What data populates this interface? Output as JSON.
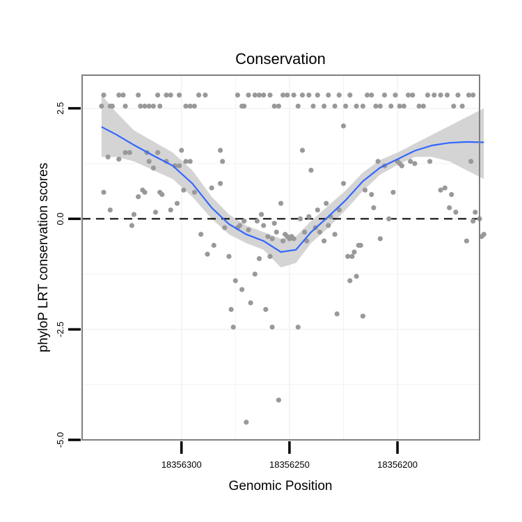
{
  "chart_data": {
    "type": "scatter",
    "title": "Conservation",
    "xlabel": "Genomic Position",
    "ylabel": "phyloP LRT conservation scores",
    "x_reversed": true,
    "xlim": [
      18356162,
      18356346
    ],
    "ylim": [
      -5.0,
      3.25
    ],
    "x_ticks": [
      18356300,
      18356250,
      18356200
    ],
    "x_tick_labels": [
      "18356300",
      "18356250",
      "18356200"
    ],
    "y_ticks": [
      2.5,
      0.0,
      -2.5,
      -5.0
    ],
    "y_tick_labels": [
      "2.5",
      "0.0",
      "-2.5",
      "-5.0"
    ],
    "grid": true,
    "reference_line": {
      "y": 0,
      "style": "dashed",
      "color": "#000000"
    },
    "colors": {
      "points": "#999999",
      "smooth_line": "#3366ff",
      "confidence_band": "#d4d4d4",
      "panel_border": "#7f7f7f",
      "grid": "#f2f2f2"
    },
    "points": [
      [
        18356337,
        2.55
      ],
      [
        18356336,
        2.8
      ],
      [
        18356333,
        2.55
      ],
      [
        18356332,
        2.55
      ],
      [
        18356329,
        2.8
      ],
      [
        18356327,
        2.8
      ],
      [
        18356326,
        2.55
      ],
      [
        18356320,
        2.8
      ],
      [
        18356319,
        2.55
      ],
      [
        18356317,
        2.55
      ],
      [
        18356315,
        2.55
      ],
      [
        18356313,
        2.55
      ],
      [
        18356311,
        2.8
      ],
      [
        18356310,
        2.55
      ],
      [
        18356307,
        2.8
      ],
      [
        18356305,
        2.8
      ],
      [
        18356301,
        2.8
      ],
      [
        18356298,
        2.55
      ],
      [
        18356296,
        2.55
      ],
      [
        18356294,
        2.55
      ],
      [
        18356292,
        2.8
      ],
      [
        18356289,
        2.8
      ],
      [
        18356274,
        2.8
      ],
      [
        18356272,
        2.55
      ],
      [
        18356271,
        2.55
      ],
      [
        18356269,
        2.8
      ],
      [
        18356266,
        2.8
      ],
      [
        18356264,
        2.8
      ],
      [
        18356262,
        2.8
      ],
      [
        18356259,
        2.8
      ],
      [
        18356257,
        2.55
      ],
      [
        18356255,
        2.55
      ],
      [
        18356253,
        2.8
      ],
      [
        18356251,
        2.8
      ],
      [
        18356248,
        2.8
      ],
      [
        18356246,
        2.55
      ],
      [
        18356244,
        2.8
      ],
      [
        18356241,
        2.8
      ],
      [
        18356239,
        2.55
      ],
      [
        18356237,
        2.8
      ],
      [
        18356234,
        2.55
      ],
      [
        18356232,
        2.8
      ],
      [
        18356229,
        2.55
      ],
      [
        18356227,
        2.8
      ],
      [
        18356224,
        2.55
      ],
      [
        18356222,
        2.8
      ],
      [
        18356219,
        2.55
      ],
      [
        18356216,
        2.55
      ],
      [
        18356214,
        2.8
      ],
      [
        18356212,
        2.8
      ],
      [
        18356210,
        2.55
      ],
      [
        18356208,
        2.55
      ],
      [
        18356206,
        2.8
      ],
      [
        18356203,
        2.55
      ],
      [
        18356201,
        2.8
      ],
      [
        18356199,
        2.55
      ],
      [
        18356197,
        2.55
      ],
      [
        18356195,
        2.8
      ],
      [
        18356193,
        2.8
      ],
      [
        18356190,
        2.55
      ],
      [
        18356188,
        2.55
      ],
      [
        18356186,
        2.8
      ],
      [
        18356183,
        2.8
      ],
      [
        18356180,
        2.8
      ],
      [
        18356177,
        2.8
      ],
      [
        18356174,
        2.55
      ],
      [
        18356172,
        2.8
      ],
      [
        18356170,
        2.55
      ],
      [
        18356167,
        2.8
      ],
      [
        18356165,
        2.8
      ],
      [
        18356336,
        0.6
      ],
      [
        18356334,
        1.4
      ],
      [
        18356333,
        0.2
      ],
      [
        18356329,
        1.35
      ],
      [
        18356326,
        1.5
      ],
      [
        18356324,
        1.5
      ],
      [
        18356323,
        -0.15
      ],
      [
        18356322,
        0.1
      ],
      [
        18356320,
        0.5
      ],
      [
        18356318,
        0.65
      ],
      [
        18356317,
        0.6
      ],
      [
        18356316,
        1.5
      ],
      [
        18356315,
        1.3
      ],
      [
        18356313,
        1.15
      ],
      [
        18356312,
        0.15
      ],
      [
        18356311,
        1.5
      ],
      [
        18356310,
        0.6
      ],
      [
        18356309,
        0.55
      ],
      [
        18356307,
        1.3
      ],
      [
        18356305,
        0.2
      ],
      [
        18356303,
        1.2
      ],
      [
        18356302,
        0.35
      ],
      [
        18356301,
        1.2
      ],
      [
        18356300,
        1.55
      ],
      [
        18356299,
        0.65
      ],
      [
        18356298,
        1.3
      ],
      [
        18356296,
        1.3
      ],
      [
        18356294,
        0.6
      ],
      [
        18356291,
        -0.35
      ],
      [
        18356288,
        -0.8
      ],
      [
        18356286,
        0.7
      ],
      [
        18356285,
        -0.6
      ],
      [
        18356282,
        1.55
      ],
      [
        18356281,
        1.3
      ],
      [
        18356282,
        0.8
      ],
      [
        18356280,
        -0.2
      ],
      [
        18356278,
        -0.85
      ],
      [
        18356277,
        -2.05
      ],
      [
        18356276,
        -2.45
      ],
      [
        18356275,
        -1.4
      ],
      [
        18356274,
        -0.2
      ],
      [
        18356273,
        -0.15
      ],
      [
        18356272,
        -1.6
      ],
      [
        18356270,
        -4.6
      ],
      [
        18356271,
        -0.05
      ],
      [
        18356269,
        -0.25
      ],
      [
        18356268,
        -1.9
      ],
      [
        18356266,
        -1.25
      ],
      [
        18356265,
        -0.05
      ],
      [
        18356264,
        -0.9
      ],
      [
        18356263,
        0.1
      ],
      [
        18356262,
        -0.15
      ],
      [
        18356261,
        -2.05
      ],
      [
        18356260,
        -0.4
      ],
      [
        18356259,
        -0.85
      ],
      [
        18356258,
        -0.45
      ],
      [
        18356258,
        -2.45
      ],
      [
        18356257,
        -0.1
      ],
      [
        18356256,
        -0.3
      ],
      [
        18356255,
        -4.1
      ],
      [
        18356254,
        0.35
      ],
      [
        18356253,
        -0.5
      ],
      [
        18356252,
        -0.35
      ],
      [
        18356251,
        -0.4
      ],
      [
        18356250,
        -0.45
      ],
      [
        18356249,
        -0.4
      ],
      [
        18356248,
        -0.45
      ],
      [
        18356246,
        -2.45
      ],
      [
        18356245,
        0.0
      ],
      [
        18356244,
        1.55
      ],
      [
        18356243,
        -0.3
      ],
      [
        18356242,
        -0.5
      ],
      [
        18356241,
        0.05
      ],
      [
        18356240,
        1.1
      ],
      [
        18356238,
        -0.2
      ],
      [
        18356237,
        0.2
      ],
      [
        18356236,
        -0.3
      ],
      [
        18356234,
        -0.5
      ],
      [
        18356233,
        0.35
      ],
      [
        18356232,
        -0.15
      ],
      [
        18356231,
        0.05
      ],
      [
        18356229,
        -0.35
      ],
      [
        18356228,
        -2.15
      ],
      [
        18356227,
        0.2
      ],
      [
        18356225,
        0.8
      ],
      [
        18356225,
        2.1
      ],
      [
        18356223,
        -0.85
      ],
      [
        18356222,
        -1.4
      ],
      [
        18356221,
        -0.85
      ],
      [
        18356220,
        -0.75
      ],
      [
        18356219,
        -1.3
      ],
      [
        18356218,
        -0.6
      ],
      [
        18356217,
        -0.6
      ],
      [
        18356216,
        -2.2
      ],
      [
        18356215,
        0.65
      ],
      [
        18356212,
        0.55
      ],
      [
        18356211,
        0.25
      ],
      [
        18356209,
        1.3
      ],
      [
        18356208,
        -0.45
      ],
      [
        18356206,
        1.2
      ],
      [
        18356204,
        0.0
      ],
      [
        18356202,
        0.6
      ],
      [
        18356200,
        1.3
      ],
      [
        18356199,
        1.25
      ],
      [
        18356198,
        1.2
      ],
      [
        18356194,
        1.3
      ],
      [
        18356192,
        1.25
      ],
      [
        18356185,
        1.3
      ],
      [
        18356180,
        0.65
      ],
      [
        18356178,
        0.7
      ],
      [
        18356176,
        0.25
      ],
      [
        18356175,
        0.55
      ],
      [
        18356173,
        0.15
      ],
      [
        18356168,
        -0.5
      ],
      [
        18356166,
        1.3
      ],
      [
        18356165,
        -0.05
      ],
      [
        18356164,
        0.15
      ],
      [
        18356162,
        0.0
      ],
      [
        18356161,
        -0.4
      ],
      [
        18356160,
        -0.35
      ]
    ],
    "smooth": {
      "x": [
        18356337,
        18356330,
        18356322,
        18356313,
        18356304,
        18356295,
        18356286,
        18356278,
        18356270,
        18356262,
        18356254,
        18356247,
        18356240,
        18356232,
        18356224,
        18356216,
        18356208,
        18356200,
        18356192,
        18356184,
        18356176,
        18356168,
        18356160
      ],
      "y": [
        2.08,
        1.9,
        1.67,
        1.43,
        1.2,
        0.8,
        0.25,
        -0.12,
        -0.35,
        -0.5,
        -0.75,
        -0.7,
        -0.3,
        0.05,
        0.42,
        0.85,
        1.16,
        1.35,
        1.54,
        1.66,
        1.72,
        1.74,
        1.73
      ],
      "lower": [
        1.4,
        1.4,
        1.3,
        1.1,
        0.9,
        0.5,
        0.0,
        -0.35,
        -0.55,
        -0.7,
        -1.1,
        -1.0,
        -0.55,
        -0.2,
        0.2,
        0.63,
        1.0,
        1.22,
        1.4,
        1.4,
        1.3,
        1.1,
        0.9
      ],
      "upper": [
        2.8,
        2.4,
        2.0,
        1.75,
        1.5,
        1.1,
        0.5,
        0.1,
        -0.15,
        -0.3,
        -0.45,
        -0.4,
        -0.05,
        0.3,
        0.64,
        1.05,
        1.33,
        1.5,
        1.7,
        1.9,
        2.1,
        2.3,
        2.5
      ]
    }
  }
}
